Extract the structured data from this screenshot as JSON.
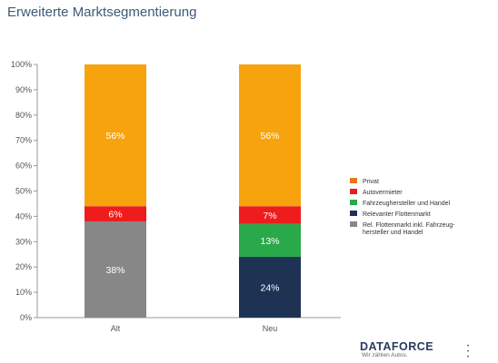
{
  "title": "Erweiterte Marktsegmentierung",
  "chart_data": {
    "type": "bar",
    "stacked": true,
    "percent_stacked": true,
    "categories": [
      "Alt",
      "Neu"
    ],
    "series": [
      {
        "name": "Rel. Flottenmarkt inkl. Fahrzeughersteller und Handel",
        "color": "#878787",
        "values": [
          38,
          0
        ],
        "labels": [
          "38%",
          ""
        ]
      },
      {
        "name": "Relevanter Flottenmarkt",
        "color": "#1e3354",
        "values": [
          0,
          24
        ],
        "labels": [
          "",
          "24%"
        ]
      },
      {
        "name": "Fahrzeughersteller und Handel",
        "color": "#2aa94a",
        "values": [
          0,
          13
        ],
        "labels": [
          "",
          "13%"
        ]
      },
      {
        "name": "Autovermieter",
        "color": "#ee1c1c",
        "values": [
          6,
          7
        ],
        "labels": [
          "6%",
          "7%"
        ]
      },
      {
        "name": "Privat",
        "color": "#f7a30e",
        "values": [
          56,
          56
        ],
        "labels": [
          "56%",
          "56%"
        ]
      }
    ],
    "legend_order": [
      {
        "label": "Privat",
        "color": "#e8781e"
      },
      {
        "label": "Autovermieter",
        "color": "#ee1c1c"
      },
      {
        "label": "Fahrzeughersteller und Handel",
        "color": "#2aa94a"
      },
      {
        "label": "Relevanter Flottenmarkt",
        "color": "#1e3354"
      },
      {
        "label": "Rel. Flottenmarkt inkl. Fahrzeug-|hersteller und Handel",
        "color": "#878787"
      }
    ],
    "ylim": [
      0,
      100
    ],
    "yticks": [
      "0%",
      "10%",
      "20%",
      "30%",
      "40%",
      "50%",
      "60%",
      "70%",
      "80%",
      "90%",
      "100%"
    ],
    "legend_position": "right",
    "grid": false
  },
  "logo": {
    "name": "DATAFORCE",
    "tagline": "Wir zählen Autos.",
    "dots": "• • •"
  }
}
